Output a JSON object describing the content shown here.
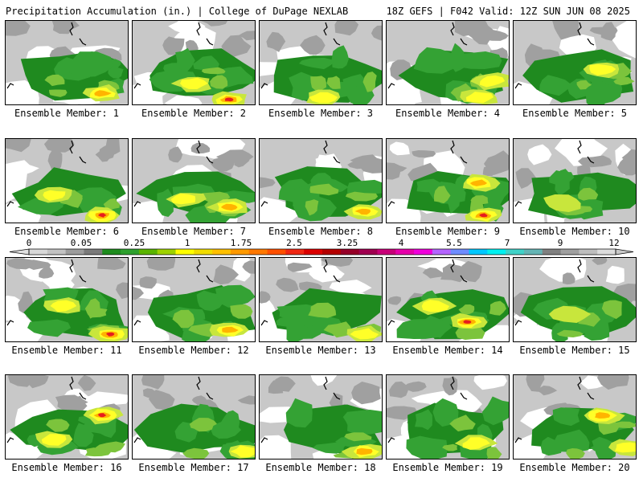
{
  "header": {
    "title_left": "Precipitation Accumulation (in.) | College of DuPage NEXLAB",
    "title_right": "18Z GEFS | F042 Valid: 12Z SUN JUN 08 2025"
  },
  "panels": [
    {
      "label": "Ensemble Member: 1"
    },
    {
      "label": "Ensemble Member: 2"
    },
    {
      "label": "Ensemble Member: 3"
    },
    {
      "label": "Ensemble Member: 4"
    },
    {
      "label": "Ensemble Member: 5"
    },
    {
      "label": "Ensemble Member: 6"
    },
    {
      "label": "Ensemble Member: 7"
    },
    {
      "label": "Ensemble Member: 8"
    },
    {
      "label": "Ensemble Member: 9"
    },
    {
      "label": "Ensemble Member: 10"
    },
    {
      "label": "Ensemble Member: 11"
    },
    {
      "label": "Ensemble Member: 12"
    },
    {
      "label": "Ensemble Member: 13"
    },
    {
      "label": "Ensemble Member: 14"
    },
    {
      "label": "Ensemble Member: 15"
    },
    {
      "label": "Ensemble Member: 16"
    },
    {
      "label": "Ensemble Member: 17"
    },
    {
      "label": "Ensemble Member: 18"
    },
    {
      "label": "Ensemble Member: 19"
    },
    {
      "label": "Ensemble Member: 20"
    }
  ],
  "colorbar": {
    "tick_labels": [
      "0",
      "0.05",
      "0.25",
      "1",
      "1.75",
      "2.5",
      "3.25",
      "4",
      "5.5",
      "7",
      "9",
      "12"
    ],
    "colors": [
      "#d8d8d8",
      "#c2c2c2",
      "#9c9c9c",
      "#7a7a7a",
      "#1e8c1e",
      "#2ea02e",
      "#5ab400",
      "#9ed200",
      "#ffff00",
      "#f0dc00",
      "#ffc000",
      "#ff9a00",
      "#ff7800",
      "#ff5000",
      "#f02814",
      "#dc0000",
      "#b40000",
      "#960028",
      "#a00050",
      "#c80078",
      "#e600aa",
      "#f000dc",
      "#b464ff",
      "#6e8cff",
      "#00c8ff",
      "#00f0f0",
      "#40d2c8",
      "#64b4b4",
      "#808080",
      "#a0a0a0",
      "#bebebe",
      "#dcdcdc"
    ]
  },
  "map_colors": {
    "background": "#ffffff",
    "gray_light": "#c8c8c8",
    "gray_mid": "#a0a0a0",
    "gray_dark": "#7e7e7e",
    "green_dark": "#1f8a1f",
    "green_mid": "#34a234",
    "green_light": "#7cc43c",
    "yellow_green": "#c8e63c",
    "yellow": "#ffff28",
    "orange": "#ffb400",
    "red": "#e61e1e",
    "coastline": "#000000"
  }
}
